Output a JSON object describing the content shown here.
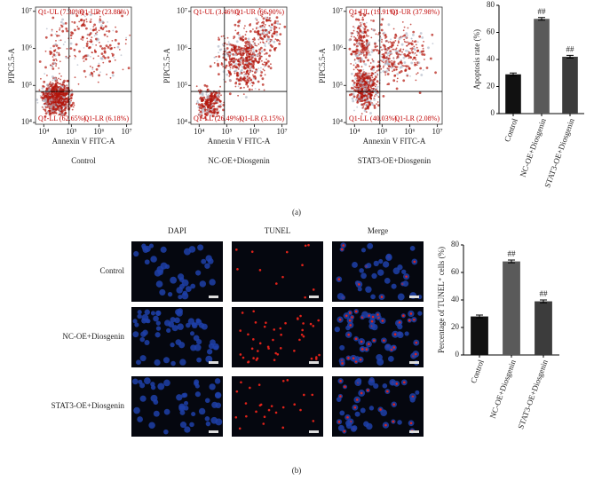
{
  "flow_axes": {
    "xlabel": "Annexin V FITC-A",
    "ylabel": "PIPC5.5-A",
    "log": true,
    "xlim": [
      5000,
      15000000
    ],
    "ylim": [
      9000,
      13000000
    ],
    "xticks": [
      {
        "value": 10000,
        "label": "10⁴"
      },
      {
        "value": 100000,
        "label": "10⁵"
      },
      {
        "value": 1000000,
        "label": "10⁶"
      },
      {
        "value": 10000000,
        "label": "10⁷"
      }
    ],
    "yticks": [
      {
        "value": 10000,
        "label": "10⁴"
      },
      {
        "value": 100000,
        "label": "10⁵"
      },
      {
        "value": 1000000,
        "label": "10⁶"
      },
      {
        "value": 10000000,
        "label": "10⁷"
      }
    ]
  },
  "flow_plots": [
    {
      "condition": "Control",
      "ul": "Q1-UL (7.30%)",
      "ur": "Q1-UR (23.88%)",
      "ll": "Q1-LL (62.65%)",
      "lr": "Q1-LR (6.18%)"
    },
    {
      "condition": "NC-OE+Diosgenin",
      "ul": "Q1-UL (3.46%)",
      "ur": "Q1-UR (66.90%)",
      "ll": "Q1-LL (26.49%)",
      "lr": "Q1-LR (3.15%)"
    },
    {
      "condition": "STAT3-OE+Diosgenin",
      "ul": "Q1-UL (19.91%)",
      "ur": "Q1-UR (37.98%)",
      "ll": "Q1-LL (40.03%)",
      "lr": "Q1-LR (2.08%)"
    }
  ],
  "chart_data": [
    {
      "type": "bar",
      "ylabel": "Apoptosis rate (%)",
      "categories": [
        "Control",
        "NC-OE+Diosgenin",
        "STAT3-OE+Diosgenin"
      ],
      "values": [
        29,
        70,
        42
      ],
      "errors": [
        1,
        1,
        1
      ],
      "significance": [
        null,
        "##",
        "##"
      ],
      "colors": [
        "#111111",
        "#5a5a5a",
        "#3c3c3c"
      ],
      "ylim": [
        0,
        80
      ],
      "yticks": [
        0,
        20,
        40,
        60,
        80
      ]
    },
    {
      "type": "bar",
      "ylabel": "Percentage of TUNEL⁺ cells (%)",
      "categories": [
        "Control",
        "NC-OE+Diosgenin",
        "STAT3-OE+Diosgenin"
      ],
      "values": [
        28,
        68,
        39
      ],
      "errors": [
        1,
        1,
        1
      ],
      "significance": [
        null,
        "##",
        "##"
      ],
      "colors": [
        "#111111",
        "#5a5a5a",
        "#3c3c3c"
      ],
      "ylim": [
        0,
        80
      ],
      "yticks": [
        0,
        20,
        40,
        60,
        80
      ]
    }
  ],
  "microscopy": {
    "columns": [
      "DAPI",
      "TUNEL",
      "Merge"
    ],
    "rows": [
      "Control",
      "NC-OE+Diosgenin",
      "STAT3-OE+Diosgenin"
    ]
  },
  "panel_labels": [
    "(a)",
    "(b)"
  ]
}
